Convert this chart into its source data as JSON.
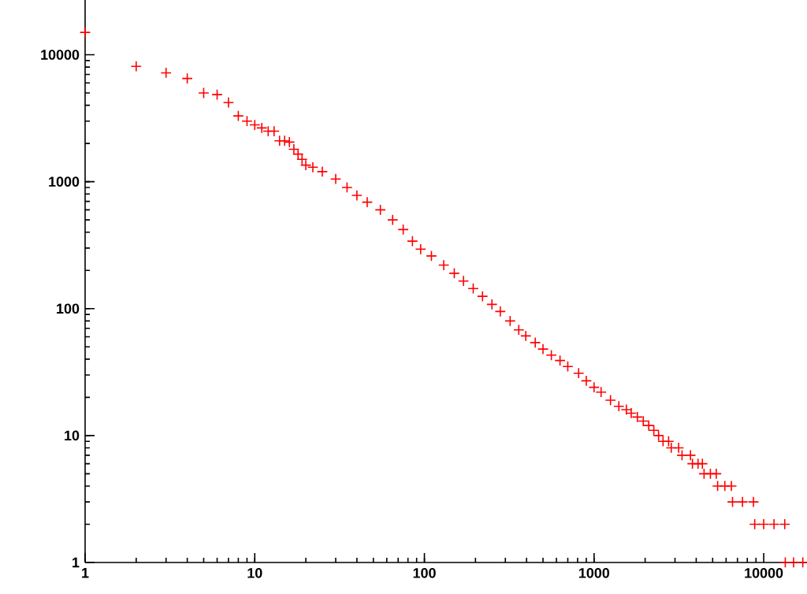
{
  "chart_data": {
    "type": "scatter",
    "log": "xy",
    "marker": "cross",
    "xlim": [
      1,
      18000
    ],
    "ylim": [
      1,
      27000
    ],
    "xticks": [
      1,
      10,
      100,
      1000,
      10000
    ],
    "yticks": [
      1,
      10,
      100,
      1000,
      10000
    ],
    "series": [
      {
        "color": "#ff0000",
        "x": [
          1,
          2,
          3,
          4,
          5,
          6,
          7,
          8,
          9,
          10,
          11,
          12,
          13,
          14,
          15,
          16,
          17,
          18,
          19,
          20,
          22,
          25,
          30,
          35,
          40,
          46,
          55,
          65,
          75,
          85,
          95,
          110,
          130,
          150,
          170,
          194,
          220,
          250,
          280,
          320,
          360,
          396,
          450,
          500,
          560,
          630,
          700,
          811,
          900,
          1000,
          1100,
          1250,
          1400,
          1550,
          1655,
          1800,
          1950,
          2100,
          2250,
          2400,
          2550,
          2750,
          2850,
          3150,
          3300,
          3700,
          3800,
          4100,
          4350,
          4450,
          4850,
          5250,
          5350,
          5900,
          6450,
          6550,
          7500,
          8700,
          8850,
          10000,
          11500,
          13300,
          13400,
          15000,
          17000
        ],
        "values": [
          15000,
          8100,
          7200,
          6500,
          5000,
          4850,
          4200,
          3300,
          3000,
          2800,
          2650,
          2500,
          2500,
          2100,
          2100,
          2050,
          1800,
          1650,
          1500,
          1350,
          1300,
          1200,
          1050,
          900,
          780,
          690,
          600,
          500,
          420,
          340,
          294,
          260,
          220,
          190,
          165,
          144,
          125,
          108,
          95,
          80,
          68,
          61,
          54,
          48,
          43,
          39,
          35,
          31,
          27,
          24,
          22,
          19,
          17,
          16,
          15,
          14,
          13,
          12,
          11,
          10,
          9,
          9,
          8,
          8,
          7,
          7,
          6,
          6,
          6,
          5,
          5,
          5,
          4,
          4,
          4,
          3,
          3,
          3,
          2,
          2,
          2,
          2,
          1,
          1,
          1
        ]
      }
    ]
  }
}
